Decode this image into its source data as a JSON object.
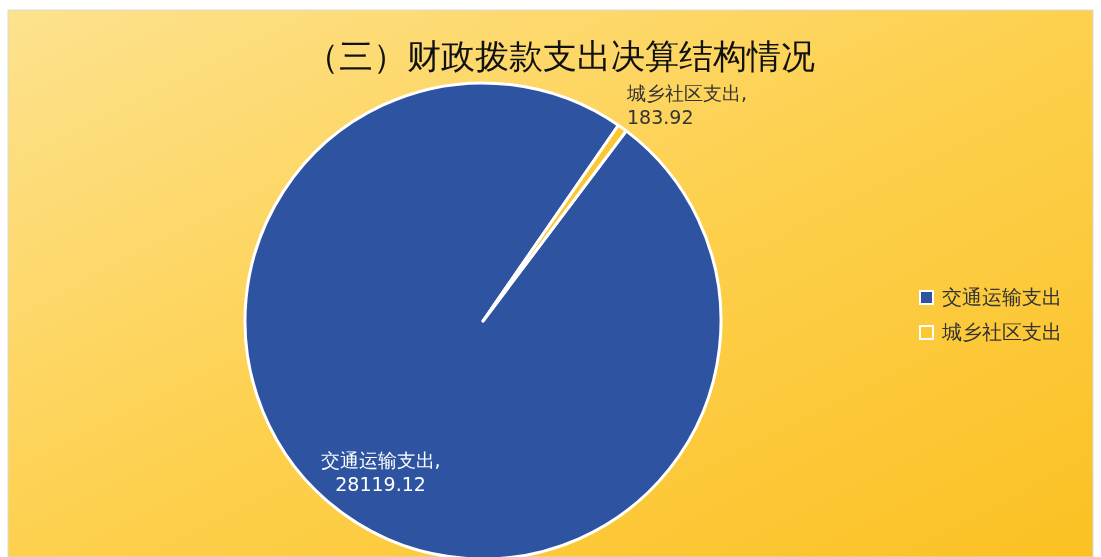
{
  "chart_data": {
    "type": "pie",
    "title": "（三）财政拨款支出决算结构情况",
    "categories": [
      "交通运输支出",
      "城乡社区支出"
    ],
    "values": [
      28119.12,
      183.92
    ],
    "colors": [
      "#2e54a1",
      "#fbc733"
    ],
    "value_labels": [
      "交通运输支出,\n28119.12",
      "城乡社区支出,\n183.92"
    ],
    "legend": "right"
  }
}
